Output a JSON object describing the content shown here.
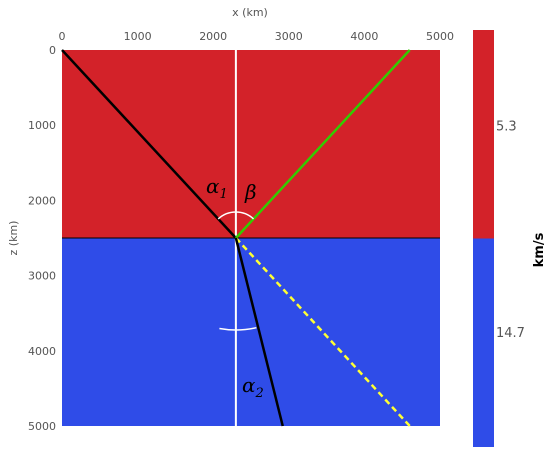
{
  "axes": {
    "xlabel": "x (km)",
    "ylabel": "z (km)",
    "x_ticks": [
      "0",
      "1000",
      "2000",
      "3000",
      "4000",
      "5000"
    ],
    "y_ticks": [
      "0",
      "1000",
      "2000",
      "3000",
      "4000",
      "5000"
    ],
    "xlim": [
      0,
      5000
    ],
    "ylim": [
      0,
      5000
    ]
  },
  "layers": [
    {
      "z_top": 0,
      "z_bottom": 2500,
      "velocity_label": "5.3",
      "color": "#d32229"
    },
    {
      "z_top": 2500,
      "z_bottom": 5000,
      "velocity_label": "14.7",
      "color": "#2f4ce8"
    }
  ],
  "colorbar": {
    "title": "km/s"
  },
  "rays": {
    "normal": {
      "x": 2300,
      "color": "#ffffff"
    },
    "incident": {
      "from": [
        0,
        0
      ],
      "to": [
        2300,
        2500
      ],
      "color": "#000000"
    },
    "reflected": {
      "from": [
        2300,
        2500
      ],
      "to": [
        4600,
        0
      ],
      "color": "#33cc00"
    },
    "transmitted": {
      "from": [
        2300,
        2500
      ],
      "to": [
        2920,
        5000
      ],
      "color": "#000000"
    },
    "continuation": {
      "from": [
        2300,
        2500
      ],
      "to": [
        4600,
        5000
      ],
      "color": "#ffff33"
    }
  },
  "labels": {
    "alpha1": {
      "symbol": "α",
      "subscript": "1"
    },
    "beta": {
      "symbol": "β"
    },
    "alpha2": {
      "symbol": "α",
      "subscript": "2"
    }
  }
}
